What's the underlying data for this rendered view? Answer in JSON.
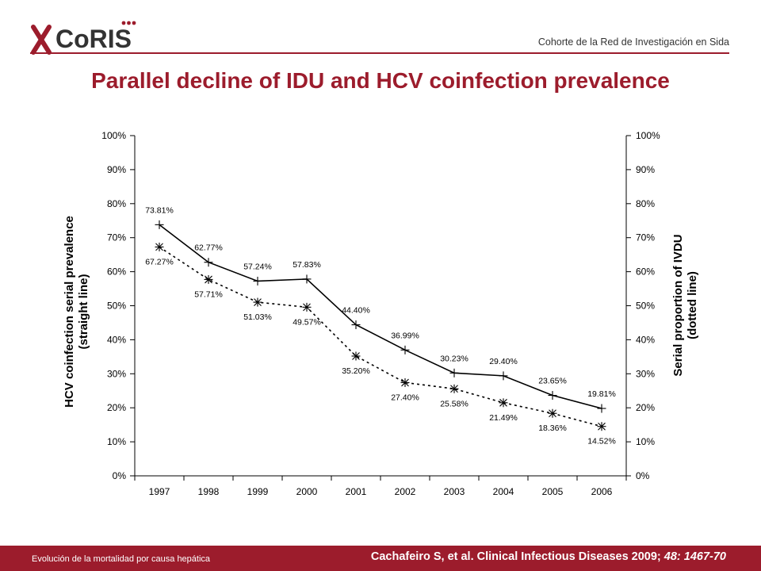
{
  "header": {
    "logo_text": "CoRIS",
    "org_name": "Cohorte de la Red de Investigación en Sida",
    "title": "Parallel decline of IDU and HCV coinfection prevalence"
  },
  "footer": {
    "left_text": "Evolución de la mortalidad por causa hepática",
    "citation_main": "Cachafeiro S, et al. Clinical Infectious Diseases 2009;",
    "citation_italic": " 48: 1467-70"
  },
  "colors": {
    "brand": "#9c1c2c",
    "line": "#000000"
  },
  "chart_data": {
    "type": "line",
    "categories": [
      "1997",
      "1998",
      "1999",
      "2000",
      "2001",
      "2002",
      "2003",
      "2004",
      "2005",
      "2006"
    ],
    "ylabel_left": [
      "HCV coinfection serial prevalence",
      "(straight line)"
    ],
    "ylabel_right": [
      "Serial proportion of IVDU",
      "(dotted line)"
    ],
    "ylim": [
      0,
      100
    ],
    "yticks": [
      "0%",
      "10%",
      "20%",
      "30%",
      "40%",
      "50%",
      "60%",
      "70%",
      "80%",
      "90%",
      "100%"
    ],
    "grid": false,
    "series": [
      {
        "style": "solid",
        "marker": "plus",
        "values": [
          73.81,
          62.77,
          57.24,
          57.83,
          44.4,
          36.99,
          30.23,
          29.4,
          23.65,
          19.81
        ],
        "labels": [
          "73.81%",
          "62.77%",
          "57.24%",
          "57.83%",
          "44.40%",
          "36.99%",
          "30.23%",
          "29.40%",
          "23.65%",
          "19.81%"
        ]
      },
      {
        "style": "dotted",
        "marker": "star",
        "values": [
          67.27,
          57.71,
          51.03,
          49.57,
          35.2,
          27.4,
          25.58,
          21.49,
          18.36,
          14.52
        ],
        "labels": [
          "67.27%",
          "57.71%",
          "51.03%",
          "49.57%",
          "35.20%",
          "27.40%",
          "25.58%",
          "21.49%",
          "18.36%",
          "14.52%"
        ]
      }
    ]
  }
}
